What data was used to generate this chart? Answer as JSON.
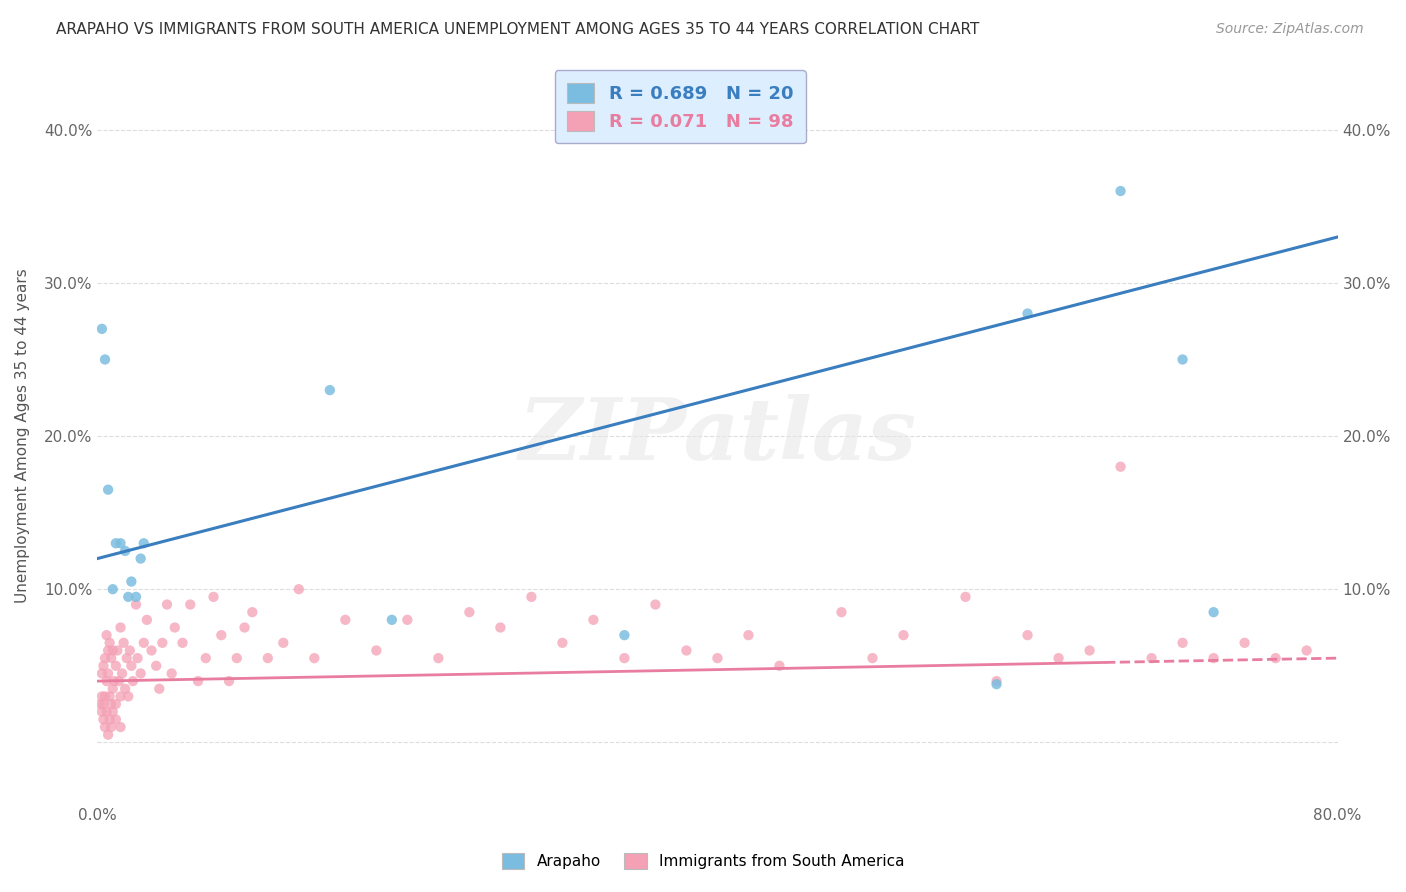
{
  "title": "ARAPAHO VS IMMIGRANTS FROM SOUTH AMERICA UNEMPLOYMENT AMONG AGES 35 TO 44 YEARS CORRELATION CHART",
  "source": "Source: ZipAtlas.com",
  "ylabel": "Unemployment Among Ages 35 to 44 years",
  "xlim": [
    0.0,
    0.8
  ],
  "ylim": [
    -0.04,
    0.44
  ],
  "xticks": [
    0.0,
    0.1,
    0.2,
    0.3,
    0.4,
    0.5,
    0.6,
    0.7,
    0.8
  ],
  "yticks": [
    0.0,
    0.1,
    0.2,
    0.3,
    0.4
  ],
  "arapaho_R": 0.689,
  "arapaho_N": 20,
  "south_america_R": 0.071,
  "south_america_N": 98,
  "arapaho_color": "#7bbde0",
  "south_america_color": "#f4a0b5",
  "arapaho_line_color": "#3a7ebf",
  "south_america_line_color": "#e87da0",
  "watermark_text": "ZIPatlas",
  "background_color": "#ffffff",
  "grid_color": "#dddddd",
  "arapaho_x": [
    0.003,
    0.005,
    0.007,
    0.01,
    0.012,
    0.015,
    0.018,
    0.02,
    0.022,
    0.025,
    0.028,
    0.03,
    0.15,
    0.19,
    0.34,
    0.58,
    0.6,
    0.66,
    0.7,
    0.72
  ],
  "arapaho_y": [
    0.27,
    0.25,
    0.165,
    0.1,
    0.13,
    0.13,
    0.125,
    0.095,
    0.105,
    0.095,
    0.12,
    0.13,
    0.23,
    0.08,
    0.07,
    0.038,
    0.28,
    0.36,
    0.25,
    0.085
  ],
  "south_america_x": [
    0.002,
    0.003,
    0.003,
    0.004,
    0.004,
    0.005,
    0.005,
    0.006,
    0.006,
    0.007,
    0.007,
    0.008,
    0.008,
    0.009,
    0.009,
    0.01,
    0.01,
    0.011,
    0.012,
    0.012,
    0.013,
    0.014,
    0.015,
    0.015,
    0.016,
    0.017,
    0.018,
    0.019,
    0.02,
    0.021,
    0.022,
    0.023,
    0.025,
    0.026,
    0.028,
    0.03,
    0.032,
    0.035,
    0.038,
    0.04,
    0.042,
    0.045,
    0.048,
    0.05,
    0.055,
    0.06,
    0.065,
    0.07,
    0.075,
    0.08,
    0.085,
    0.09,
    0.095,
    0.1,
    0.11,
    0.12,
    0.13,
    0.14,
    0.16,
    0.18,
    0.2,
    0.22,
    0.24,
    0.26,
    0.28,
    0.3,
    0.32,
    0.34,
    0.36,
    0.38,
    0.4,
    0.42,
    0.44,
    0.48,
    0.5,
    0.52,
    0.56,
    0.58,
    0.6,
    0.62,
    0.64,
    0.66,
    0.68,
    0.7,
    0.72,
    0.74,
    0.76,
    0.78,
    0.003,
    0.004,
    0.005,
    0.006,
    0.007,
    0.008,
    0.009,
    0.01,
    0.012,
    0.015
  ],
  "south_america_y": [
    0.025,
    0.03,
    0.045,
    0.025,
    0.05,
    0.03,
    0.055,
    0.04,
    0.07,
    0.045,
    0.06,
    0.03,
    0.065,
    0.025,
    0.055,
    0.035,
    0.06,
    0.04,
    0.025,
    0.05,
    0.06,
    0.04,
    0.03,
    0.075,
    0.045,
    0.065,
    0.035,
    0.055,
    0.03,
    0.06,
    0.05,
    0.04,
    0.09,
    0.055,
    0.045,
    0.065,
    0.08,
    0.06,
    0.05,
    0.035,
    0.065,
    0.09,
    0.045,
    0.075,
    0.065,
    0.09,
    0.04,
    0.055,
    0.095,
    0.07,
    0.04,
    0.055,
    0.075,
    0.085,
    0.055,
    0.065,
    0.1,
    0.055,
    0.08,
    0.06,
    0.08,
    0.055,
    0.085,
    0.075,
    0.095,
    0.065,
    0.08,
    0.055,
    0.09,
    0.06,
    0.055,
    0.07,
    0.05,
    0.085,
    0.055,
    0.07,
    0.095,
    0.04,
    0.07,
    0.055,
    0.06,
    0.18,
    0.055,
    0.065,
    0.055,
    0.065,
    0.055,
    0.06,
    0.02,
    0.015,
    0.01,
    0.02,
    0.005,
    0.015,
    0.01,
    0.02,
    0.015,
    0.01
  ]
}
